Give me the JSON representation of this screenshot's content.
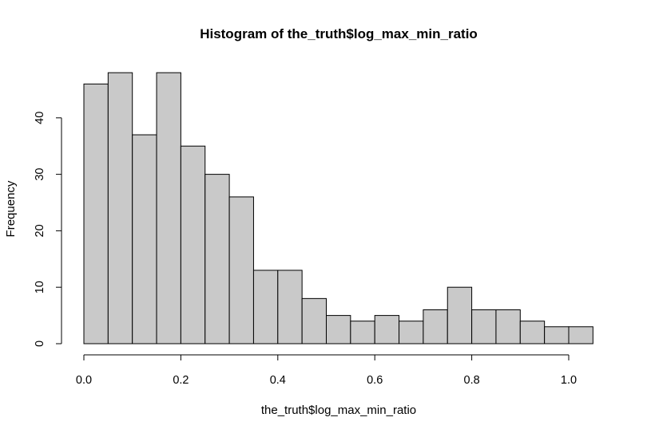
{
  "chart_data": {
    "type": "bar",
    "title": "Histogram of the_truth$log_max_min_ratio",
    "xlabel": "the_truth$log_max_min_ratio",
    "ylabel": "Frequency",
    "bin_edges": [
      0.0,
      0.05,
      0.1,
      0.15,
      0.2,
      0.25,
      0.3,
      0.35,
      0.4,
      0.45,
      0.5,
      0.55,
      0.6,
      0.65,
      0.7,
      0.75,
      0.8,
      0.85,
      0.9,
      0.95,
      1.0,
      1.05
    ],
    "values": [
      46,
      48,
      37,
      48,
      35,
      30,
      26,
      13,
      13,
      8,
      5,
      4,
      5,
      4,
      6,
      10,
      6,
      6,
      4,
      3,
      3
    ],
    "xlim": [
      0.0,
      1.05
    ],
    "ylim": [
      0,
      48
    ],
    "x_ticks": [
      "0.0",
      "0.2",
      "0.4",
      "0.6",
      "0.8",
      "1.0"
    ],
    "y_ticks": [
      "0",
      "10",
      "20",
      "30",
      "40"
    ],
    "bar_color": "#c9c9c9",
    "grid": false
  }
}
